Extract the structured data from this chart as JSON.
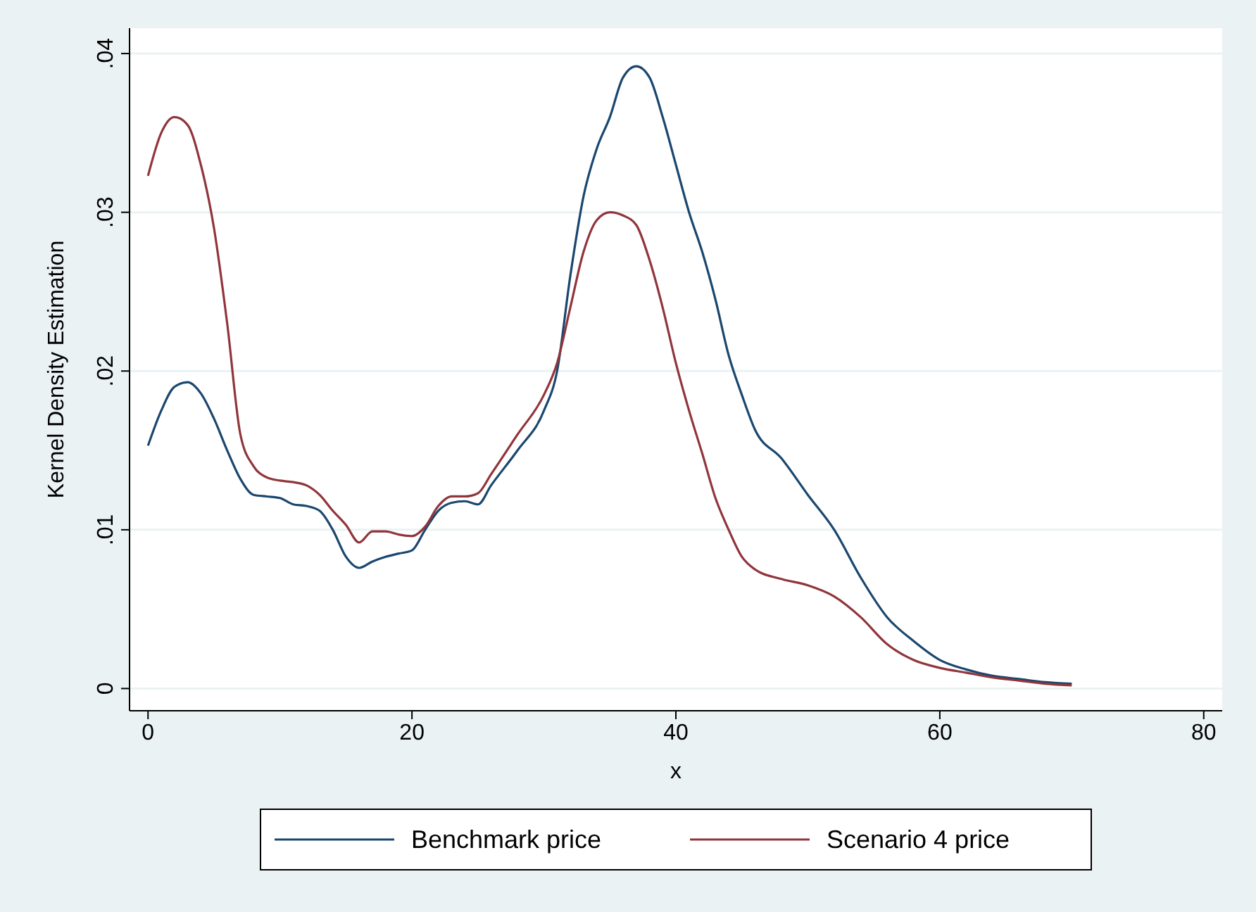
{
  "chart_data": {
    "type": "line",
    "xlabel": "x",
    "ylabel": "Kernel Density Estimation",
    "xlim": [
      -1.4,
      81.4
    ],
    "xticks": [
      0,
      20,
      40,
      60,
      80
    ],
    "ylim": [
      -0.0014,
      0.0416
    ],
    "yticks": [
      0,
      {
        "value": 0.01,
        "label": ".01"
      },
      {
        "value": 0.02,
        "label": ".02"
      },
      {
        "value": 0.03,
        "label": ".03"
      },
      {
        "value": 0.04,
        "label": ".04"
      }
    ],
    "grid": "y",
    "legend": "bottom",
    "line_style": "solid",
    "marker": "none",
    "x": [
      0,
      1,
      2,
      3,
      4,
      5,
      6,
      7,
      8,
      9,
      10,
      11,
      12,
      13,
      14,
      15,
      16,
      17,
      18,
      19,
      20,
      21,
      22,
      23,
      24,
      25,
      26,
      28,
      30,
      31,
      32,
      33,
      34,
      35,
      36,
      37,
      38,
      39,
      40,
      41,
      42,
      43,
      44,
      45,
      46,
      48,
      50,
      52,
      54,
      56,
      58,
      60,
      62,
      64,
      66,
      68,
      70
    ],
    "series": [
      {
        "name": "Benchmark price",
        "color": "#1a476f",
        "values": [
          0.0153,
          0.0175,
          0.019,
          0.0193,
          0.0186,
          0.017,
          0.015,
          0.0132,
          0.0122,
          0.0121,
          0.012,
          0.0116,
          0.0115,
          0.0112,
          0.01,
          0.0083,
          0.0076,
          0.008,
          0.0083,
          0.0085,
          0.0087,
          0.01,
          0.0112,
          0.0117,
          0.0118,
          0.0116,
          0.0128,
          0.015,
          0.0175,
          0.02,
          0.026,
          0.031,
          0.034,
          0.036,
          0.0385,
          0.0392,
          0.0385,
          0.036,
          0.033,
          0.03,
          0.0275,
          0.0245,
          0.021,
          0.0185,
          0.0163,
          0.0145,
          0.0122,
          0.01,
          0.007,
          0.0045,
          0.003,
          0.0018,
          0.0012,
          0.0008,
          0.0006,
          0.0004,
          0.0003
        ]
      },
      {
        "name": "Scenario 4 price",
        "color": "#90353b",
        "values": [
          0.0323,
          0.035,
          0.036,
          0.0355,
          0.033,
          0.029,
          0.023,
          0.016,
          0.014,
          0.0133,
          0.0131,
          0.013,
          0.0128,
          0.0122,
          0.0112,
          0.0103,
          0.0092,
          0.0099,
          0.0099,
          0.0097,
          0.0096,
          0.0102,
          0.0115,
          0.0121,
          0.0121,
          0.0123,
          0.0135,
          0.016,
          0.0185,
          0.0205,
          0.024,
          0.0275,
          0.0295,
          0.03,
          0.0298,
          0.0292,
          0.027,
          0.024,
          0.0205,
          0.0175,
          0.0148,
          0.012,
          0.01,
          0.0083,
          0.0075,
          0.0069,
          0.0065,
          0.0058,
          0.0045,
          0.0028,
          0.0018,
          0.0013,
          0.001,
          0.0007,
          0.0005,
          0.0003,
          0.0002
        ]
      }
    ]
  }
}
